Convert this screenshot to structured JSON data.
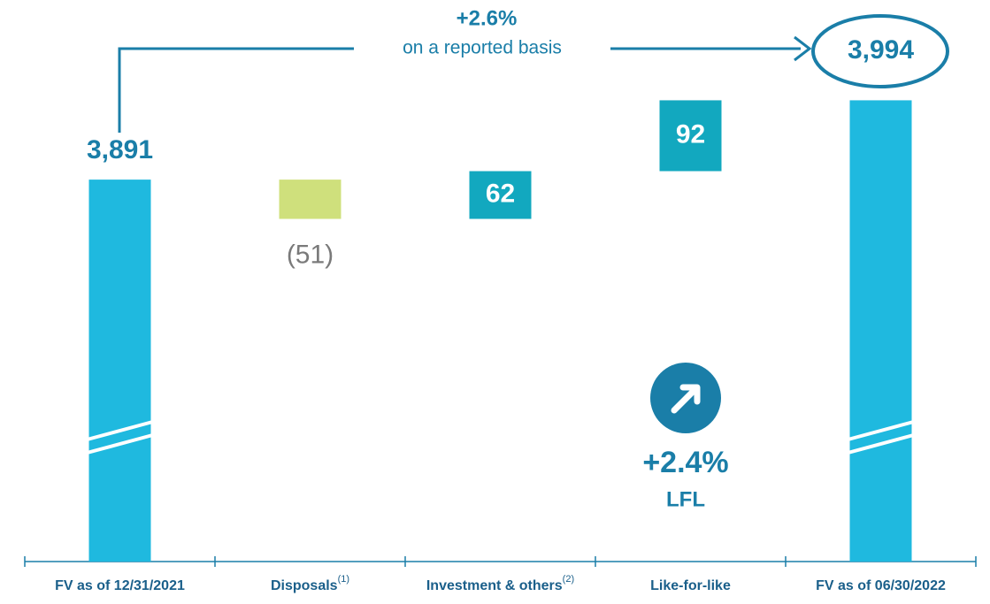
{
  "chart_data": {
    "type": "waterfall",
    "categories": [
      "FV as of 12/31/2021",
      "Disposals",
      "Investment & others",
      "Like-for-like",
      "FV as of 06/30/2022"
    ],
    "category_notes": [
      null,
      "(1)",
      "(2)",
      null,
      null
    ],
    "values": [
      3891,
      -51,
      62,
      92,
      3994
    ],
    "value_labels": [
      "3,891",
      "(51)",
      "62",
      "92",
      "3,994"
    ],
    "measures": [
      "absolute",
      "relative",
      "relative",
      "relative",
      "absolute"
    ],
    "colors": [
      "#1fb9df",
      "#cfe07c",
      "#12a8bf",
      "#12a8bf",
      "#1fb9df"
    ],
    "ylim": [
      3395,
      4130
    ],
    "annotations": {
      "reported_change": "+2.6%",
      "reported_text": "on a reported basis",
      "lfl_change": "+2.4%",
      "lfl_text": "LFL"
    }
  }
}
